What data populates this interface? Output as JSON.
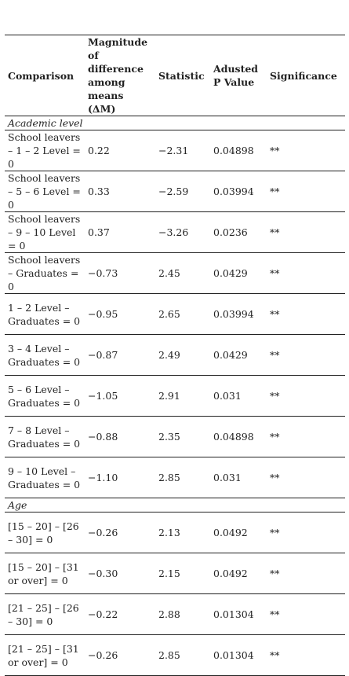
{
  "table": {
    "headers": {
      "comparison": "Comparison",
      "magnitude_lines": [
        "Magnitude",
        "of",
        "difference",
        "among",
        "means"
      ],
      "magnitude_symbol": "(ΔM)",
      "statistic": "Statistic",
      "p_value": "Adusted P Value",
      "significance": "Significance"
    },
    "sections": [
      {
        "title": "Academic level",
        "rows": [
          {
            "comparison": "School leavers – 1 – 2 Level = 0",
            "delta": "0.22",
            "statistic": "−2.31",
            "p": "0.04898",
            "sig": "**"
          },
          {
            "comparison": "School leavers – 5 – 6 Level = 0",
            "delta": "0.33",
            "statistic": "−2.59",
            "p": "0.03994",
            "sig": "**"
          },
          {
            "comparison": "School leavers – 9 – 10 Level = 0",
            "delta": "0.37",
            "statistic": "−3.26",
            "p": "0.0236",
            "sig": "**"
          },
          {
            "comparison": "School leavers – Graduates = 0",
            "delta": "−0.73",
            "statistic": "2.45",
            "p": "0.0429",
            "sig": "**"
          },
          {
            "comparison": "1 – 2 Level – Graduates = 0",
            "delta": "−0.95",
            "statistic": "2.65",
            "p": "0.03994",
            "sig": "**"
          },
          {
            "comparison": "3 – 4 Level – Graduates = 0",
            "delta": "−0.87",
            "statistic": "2.49",
            "p": "0.0429",
            "sig": "**"
          },
          {
            "comparison": "5 – 6 Level – Graduates = 0",
            "delta": "−1.05",
            "statistic": "2.91",
            "p": "0.031",
            "sig": "**"
          },
          {
            "comparison": "7 – 8 Level – Graduates = 0",
            "delta": "−0.88",
            "statistic": "2.35",
            "p": "0.04898",
            "sig": "**"
          },
          {
            "comparison": "9 – 10 Level – Graduates = 0",
            "delta": "−1.10",
            "statistic": "2.85",
            "p": "0.031",
            "sig": "**"
          }
        ]
      },
      {
        "title": "Age",
        "rows": [
          {
            "comparison": "[15 – 20] – [26 – 30] = 0",
            "delta": "−0.26",
            "statistic": "2.13",
            "p": "0.0492",
            "sig": "**"
          },
          {
            "comparison": "[15 – 20] – [31 or over] = 0",
            "delta": "−0.30",
            "statistic": "2.15",
            "p": "0.0492",
            "sig": "**"
          },
          {
            "comparison": "[21 – 25] – [26 – 30] = 0",
            "delta": "−0.22",
            "statistic": "2.88",
            "p": "0.01304",
            "sig": "**"
          },
          {
            "comparison": "[21 – 25] – [31 or over] = 0",
            "delta": "−0.26",
            "statistic": "2.85",
            "p": "0.01304",
            "sig": "**"
          }
        ]
      }
    ]
  }
}
